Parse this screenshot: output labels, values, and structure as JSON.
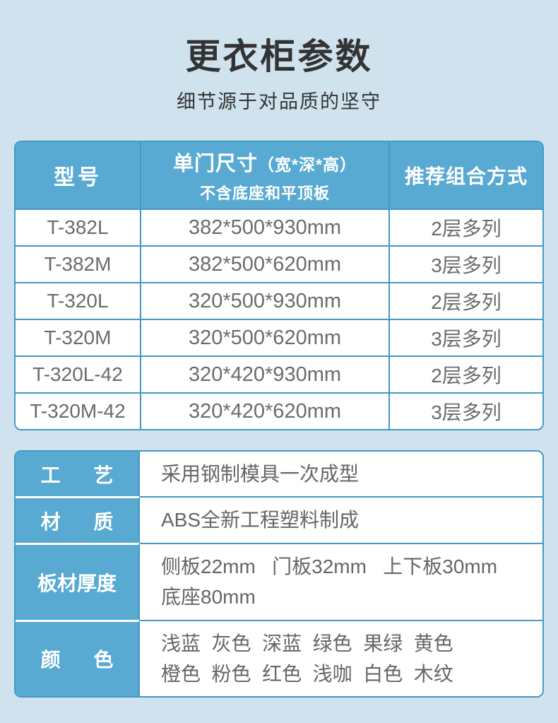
{
  "colors": {
    "background": "#cfe2ee",
    "accent_blue": "#58aad2",
    "border_blue": "#4299c2",
    "title_text": "#333333",
    "body_text": "#6b6b6b",
    "header_text": "#ffffff"
  },
  "header": {
    "title": "更衣柜参数",
    "subtitle": "细节源于对品质的坚守"
  },
  "spec_table": {
    "columns": {
      "model": "型号",
      "size_title": "单门尺寸",
      "size_paren": "（宽*深*高）",
      "size_note": "不含底座和平顶板",
      "combo": "推荐组合方式"
    },
    "rows": [
      {
        "model": "T-382L",
        "size": "382*500*930mm",
        "combo": "2层多列"
      },
      {
        "model": "T-382M",
        "size": "382*500*620mm",
        "combo": "3层多列"
      },
      {
        "model": "T-320L",
        "size": "320*500*930mm",
        "combo": "2层多列"
      },
      {
        "model": "T-320M",
        "size": "320*500*620mm",
        "combo": "3层多列"
      },
      {
        "model": "T-320L-42",
        "size": "320*420*930mm",
        "combo": "2层多列"
      },
      {
        "model": "T-320M-42",
        "size": "320*420*620mm",
        "combo": "3层多列"
      }
    ]
  },
  "detail_table": {
    "rows": [
      {
        "label": "工艺",
        "label_display": "工      艺",
        "value_line1": "采用钢制模具一次成型"
      },
      {
        "label": "材质",
        "label_display": "材      质",
        "value_line1": "ABS全新工程塑料制成"
      },
      {
        "label": "板材厚度",
        "label_display": "板材厚度",
        "value_line1": "侧板22mm   门板32mm   上下板30mm",
        "value_line2": "底座80mm"
      },
      {
        "label": "颜色",
        "label_display": "颜      色",
        "value_line1": "浅蓝  灰色  深蓝  绿色  果绿  黄色",
        "value_line2": "橙色  粉色  红色  浅咖  白色  木纹"
      }
    ]
  }
}
